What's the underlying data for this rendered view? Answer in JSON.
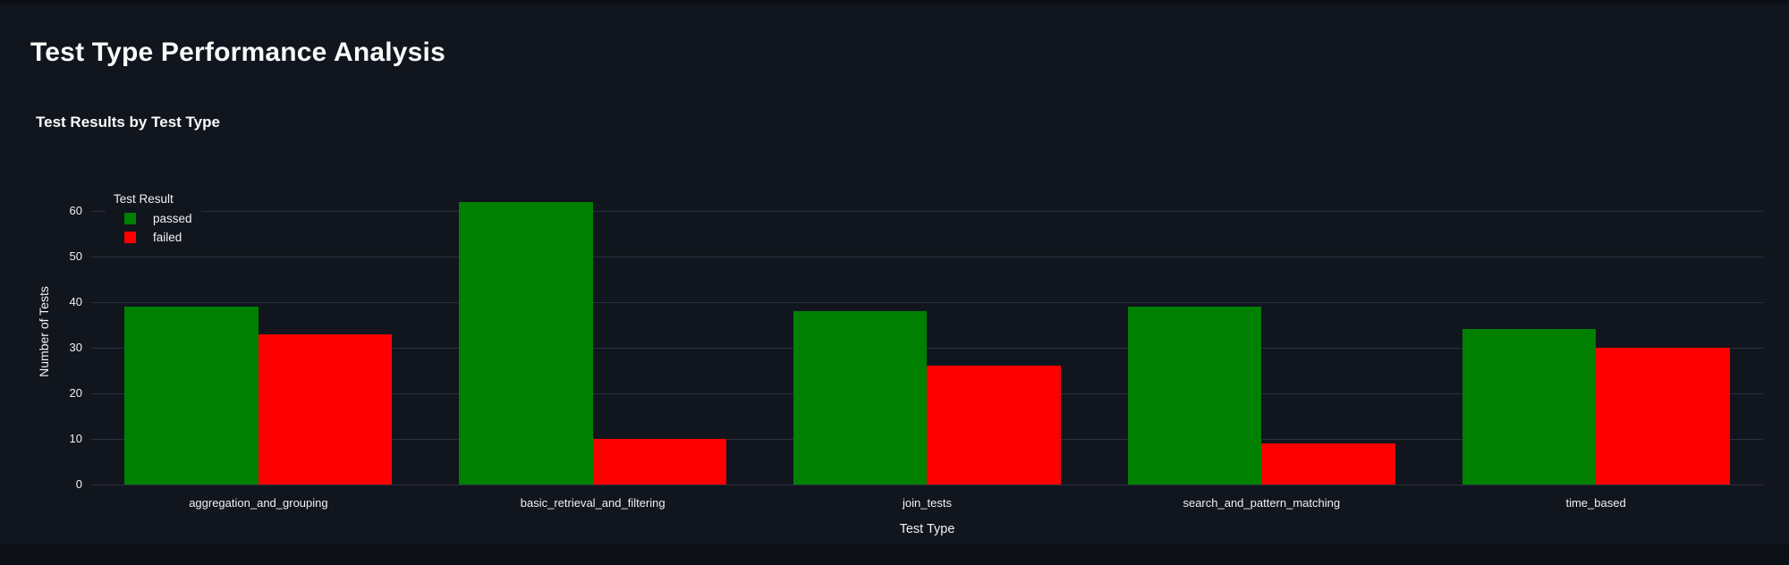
{
  "page": {
    "title": "Test Type Performance Analysis"
  },
  "chart": {
    "subtitle": "Test Results by Test Type"
  },
  "chart_data": {
    "type": "bar",
    "title": "Test Results by Test Type",
    "categories": [
      "aggregation_and_grouping",
      "basic_retrieval_and_filtering",
      "join_tests",
      "search_and_pattern_matching",
      "time_based"
    ],
    "series": [
      {
        "name": "passed",
        "color": "#008000",
        "values": [
          39,
          62,
          38,
          39,
          34
        ]
      },
      {
        "name": "failed",
        "color": "#ff0000",
        "values": [
          33,
          10,
          26,
          9,
          30
        ]
      }
    ],
    "xlabel": "Test Type",
    "ylabel": "Number of Tests",
    "ylim": [
      0,
      67
    ],
    "yticks": [
      0,
      10,
      20,
      30,
      40,
      50,
      60
    ],
    "grid": true,
    "legend": {
      "title": "Test Result",
      "position": "top-left-inside"
    }
  },
  "colors": {
    "background": "#11151d",
    "page_edge": "#0c0f15",
    "grid": "#2b303c",
    "text": "#fafafa",
    "passed": "#008000",
    "failed": "#ff0000"
  }
}
